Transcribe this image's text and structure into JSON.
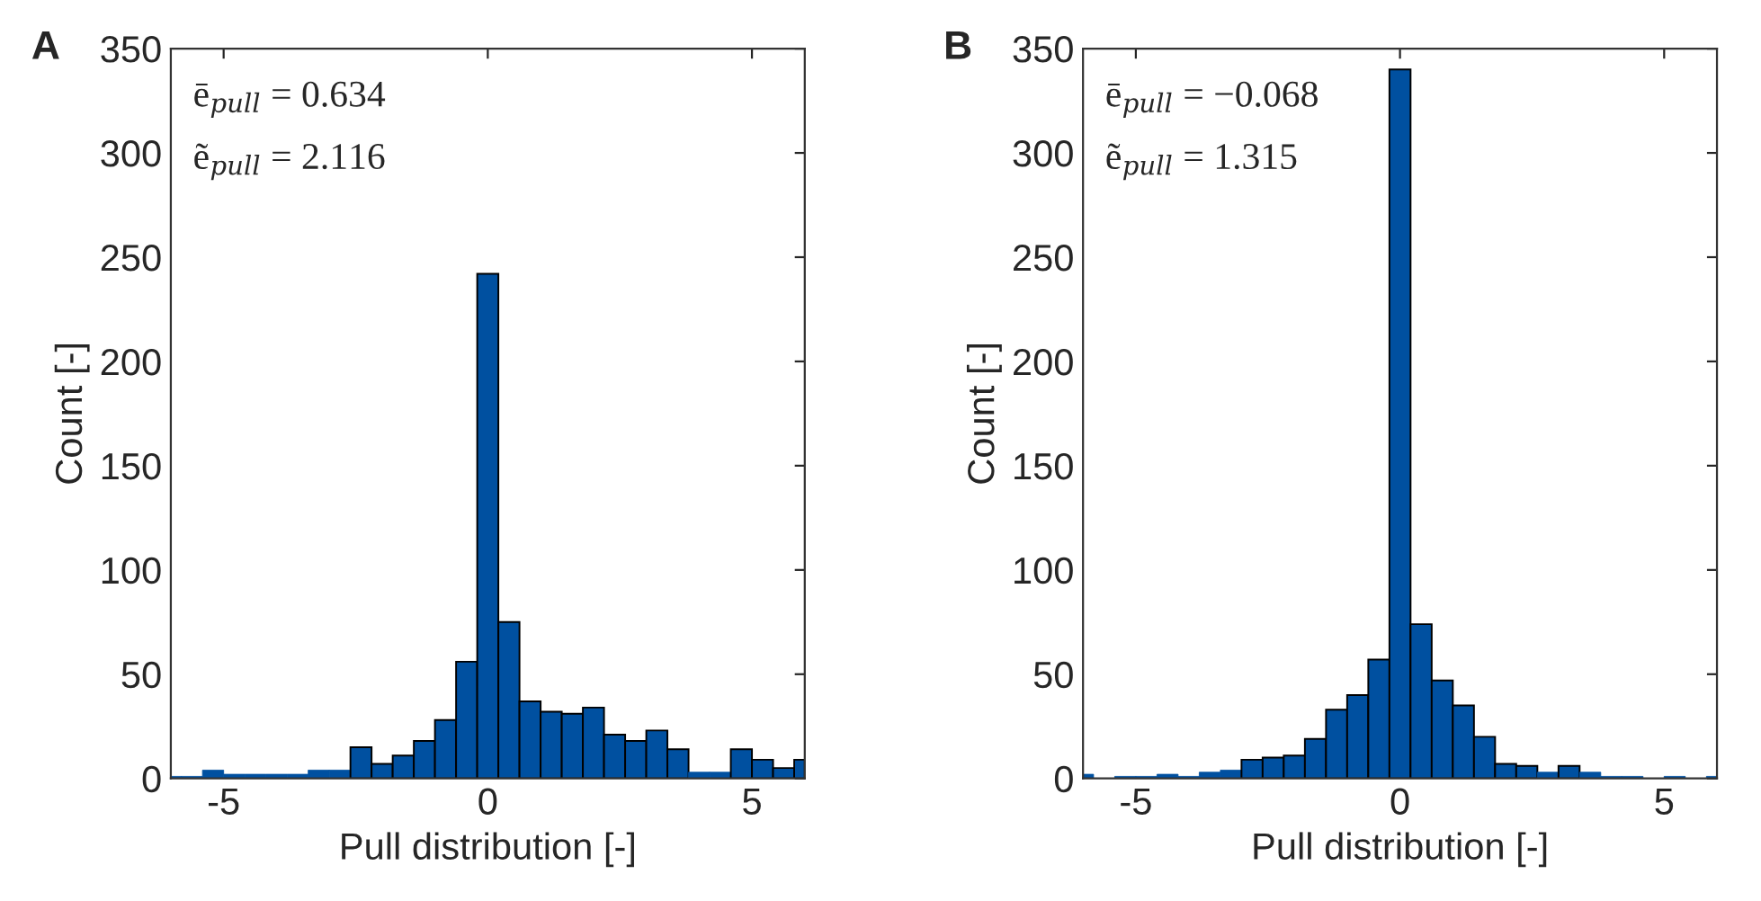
{
  "chart_data": [
    {
      "type": "histogram",
      "title": "A",
      "xlabel": "Pull distribution [-]",
      "ylabel": "Count [-]",
      "color": "#0050a0",
      "bins": [
        -6,
        -5.8,
        -5.4,
        -5.0,
        -4.6,
        -4.2,
        -3.8,
        -3.4,
        -3.0,
        -2.6,
        -2.2,
        -1.8,
        -1.4,
        -1.0,
        -0.6,
        -0.2,
        0.2,
        0.6,
        1.0,
        1.4,
        1.8,
        2.2,
        2.6,
        3.0,
        3.4,
        3.8,
        4.2,
        4.6,
        5.0,
        5.4,
        5.8,
        6
      ],
      "values": [
        1,
        1,
        4,
        2,
        2,
        2,
        2,
        4,
        4,
        15,
        7,
        11,
        18,
        28,
        56,
        242,
        75,
        37,
        32,
        31,
        34,
        21,
        18,
        23,
        14,
        3,
        3,
        14,
        9,
        5,
        9
      ],
      "xlim": [
        -6,
        6
      ],
      "ylim": [
        0,
        350
      ],
      "xticks": [
        -5,
        0,
        5
      ],
      "yticks": [
        0,
        50,
        100,
        150,
        200,
        250,
        300,
        350
      ],
      "grid": false,
      "annotations": [
        "ē$_{pull}$ = 0.634",
        "ẽ$_{pull}$ = 2.116"
      ]
    },
    {
      "type": "histogram",
      "title": "B",
      "xlabel": "Pull distribution [-]",
      "ylabel": "Count [-]",
      "color": "#0050a0",
      "bins": [
        -6,
        -5.8,
        -5.4,
        -5.0,
        -4.6,
        -4.2,
        -3.8,
        -3.4,
        -3.0,
        -2.6,
        -2.2,
        -1.8,
        -1.4,
        -1.0,
        -0.6,
        -0.2,
        0.2,
        0.6,
        1.0,
        1.4,
        1.8,
        2.2,
        2.6,
        3.0,
        3.4,
        3.8,
        4.2,
        4.6,
        5.0,
        5.4,
        5.8,
        6
      ],
      "values": [
        2,
        0,
        1,
        1,
        2,
        1,
        3,
        4,
        9,
        10,
        11,
        19,
        33,
        40,
        57,
        340,
        74,
        47,
        35,
        20,
        7,
        6,
        3,
        6,
        3,
        1,
        1,
        0,
        1,
        0,
        1
      ],
      "xlim": [
        -6,
        6
      ],
      "ylim": [
        0,
        350
      ],
      "xticks": [
        -5,
        0,
        5
      ],
      "yticks": [
        0,
        50,
        100,
        150,
        200,
        250,
        300,
        350
      ],
      "grid": false,
      "annotations": [
        "ē$_{pull}$ = −0.068",
        "ẽ$_{pull}$ = 1.315"
      ]
    }
  ]
}
